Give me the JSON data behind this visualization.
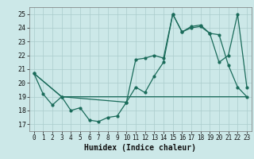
{
  "xlabel": "Humidex (Indice chaleur)",
  "bg_color": "#cce8e8",
  "grid_color": "#aacccc",
  "line_color": "#1a6b5a",
  "xlim": [
    -0.5,
    23.5
  ],
  "ylim": [
    16.5,
    25.5
  ],
  "yticks": [
    17,
    18,
    19,
    20,
    21,
    22,
    23,
    24,
    25
  ],
  "xticks": [
    0,
    1,
    2,
    3,
    4,
    5,
    6,
    7,
    8,
    9,
    10,
    11,
    12,
    13,
    14,
    15,
    16,
    17,
    18,
    19,
    20,
    21,
    22,
    23
  ],
  "series1_x": [
    0,
    1,
    2,
    3,
    4,
    5,
    6,
    7,
    8,
    9,
    10,
    11,
    12,
    13,
    14,
    15,
    16,
    17,
    18,
    19,
    20,
    21,
    22,
    23
  ],
  "series1_y": [
    20.7,
    19.2,
    18.4,
    19.0,
    18.0,
    18.2,
    17.3,
    17.2,
    17.5,
    17.6,
    18.6,
    19.7,
    19.3,
    20.5,
    21.5,
    25.0,
    23.7,
    24.0,
    24.1,
    23.6,
    23.5,
    21.3,
    19.7,
    19.0
  ],
  "series2_x": [
    0,
    3,
    10,
    11,
    12,
    13,
    14,
    15,
    16,
    17,
    18,
    19,
    20,
    21,
    22,
    23
  ],
  "series2_y": [
    20.7,
    19.0,
    18.6,
    21.7,
    21.8,
    22.0,
    21.8,
    25.0,
    23.7,
    24.1,
    24.2,
    23.6,
    21.5,
    22.0,
    25.0,
    19.7
  ],
  "series3_x": [
    0,
    3,
    9,
    10,
    11,
    12,
    13,
    14,
    15,
    16,
    17,
    18,
    19,
    20,
    21,
    22,
    23
  ],
  "series3_y": [
    20.7,
    19.0,
    19.0,
    19.0,
    19.0,
    19.0,
    19.0,
    19.0,
    19.0,
    19.0,
    19.0,
    19.0,
    19.0,
    19.0,
    19.0,
    19.0,
    19.0
  ]
}
